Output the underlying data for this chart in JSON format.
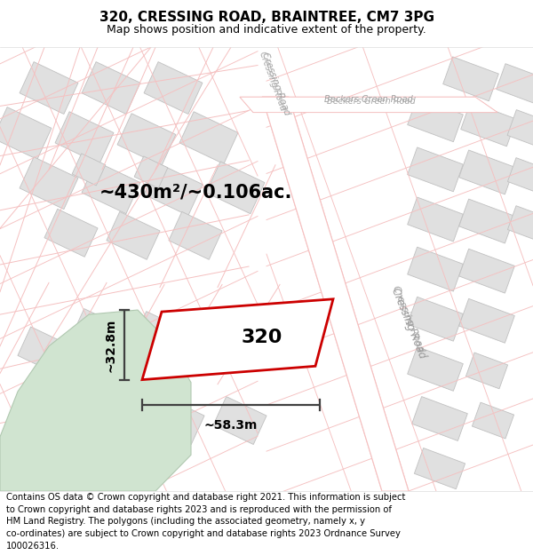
{
  "title_line1": "320, CRESSING ROAD, BRAINTREE, CM7 3PG",
  "title_line2": "Map shows position and indicative extent of the property.",
  "area_label": "~430m²/~0.106ac.",
  "width_label": "~58.3m",
  "height_label": "~32.8m",
  "property_number": "320",
  "footer_text": "Contains OS data © Crown copyright and database right 2021. This information is subject to Crown copyright and database rights 2023 and is reproduced with the permission of HM Land Registry. The polygons (including the associated geometry, namely x, y co-ordinates) are subject to Crown copyright and database rights 2023 Ordnance Survey 100026316.",
  "bg_color": "#ffffff",
  "road_pink": "#f5c0c0",
  "road_pink_light": "#f0d0d0",
  "building_gray": "#e0e0e0",
  "building_edge": "#c0c0c0",
  "green_fill": "#d0e4d0",
  "green_edge": "#b0c8b0",
  "property_red": "#cc0000",
  "dim_color": "#404040",
  "label_color": "#a0a0a0",
  "title_fontsize": 11,
  "subtitle_fontsize": 9,
  "footer_fontsize": 7.2
}
